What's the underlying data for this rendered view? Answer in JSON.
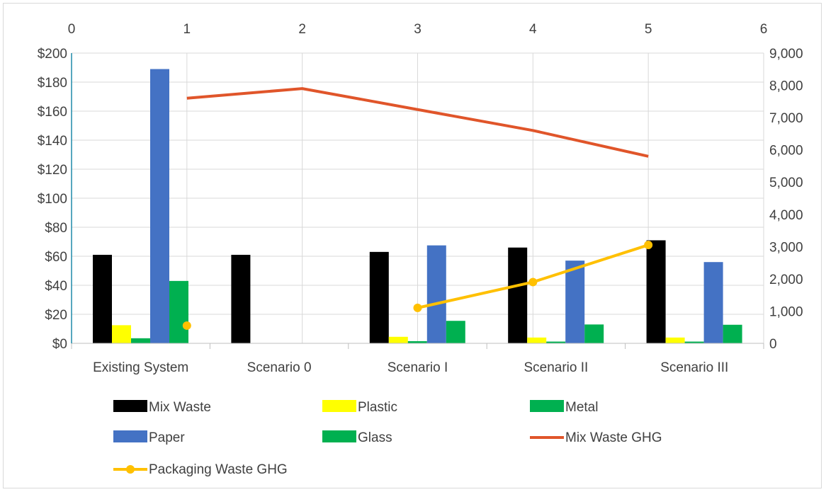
{
  "chart_data": {
    "type": "bar",
    "categories": [
      "Existing System",
      "Scenario 0",
      "Scenario I",
      "Scenario II",
      "Scenario III"
    ],
    "series": [
      {
        "name": "Mix Waste",
        "kind": "bar",
        "color": "#000000",
        "values": [
          61,
          61,
          63,
          66,
          71
        ]
      },
      {
        "name": "Plastic",
        "kind": "bar",
        "color": "#ffff00",
        "values": [
          12.5,
          0,
          4.5,
          4,
          4
        ]
      },
      {
        "name": "Metal",
        "kind": "bar",
        "color": "#00b050",
        "values": [
          3.5,
          0,
          1.5,
          1.2,
          1.2
        ]
      },
      {
        "name": "Paper",
        "kind": "bar",
        "color": "#4472c4",
        "values": [
          189,
          0,
          67.5,
          57,
          56
        ]
      },
      {
        "name": "Glass",
        "kind": "bar",
        "color": "#00b050",
        "values": [
          43,
          0,
          15.5,
          13,
          12.8
        ]
      },
      {
        "name": "Mix Waste GHG",
        "kind": "line",
        "color": "#e0552a",
        "x": [
          1,
          2,
          3,
          4,
          5
        ],
        "values": [
          7600,
          7900,
          7250,
          6600,
          5800
        ]
      },
      {
        "name": "Packaging Waste GHG",
        "kind": "line-marker",
        "color": "#ffc000",
        "x": [
          1,
          3,
          4,
          5
        ],
        "values": [
          550,
          1100,
          1900,
          3050
        ]
      }
    ],
    "y_left": {
      "ticks": [
        "$0",
        "$20",
        "$40",
        "$60",
        "$80",
        "$100",
        "$120",
        "$140",
        "$160",
        "$180",
        "$200"
      ],
      "range": [
        0,
        200
      ]
    },
    "y_right": {
      "ticks": [
        "0",
        "1,000",
        "2,000",
        "3,000",
        "4,000",
        "5,000",
        "6,000",
        "7,000",
        "8,000",
        "9,000"
      ],
      "range": [
        0,
        9000
      ]
    },
    "x_top": {
      "ticks": [
        "0",
        "1",
        "2",
        "3",
        "4",
        "5",
        "6"
      ],
      "range": [
        0,
        6
      ]
    },
    "grid": true,
    "legend_position": "bottom"
  }
}
